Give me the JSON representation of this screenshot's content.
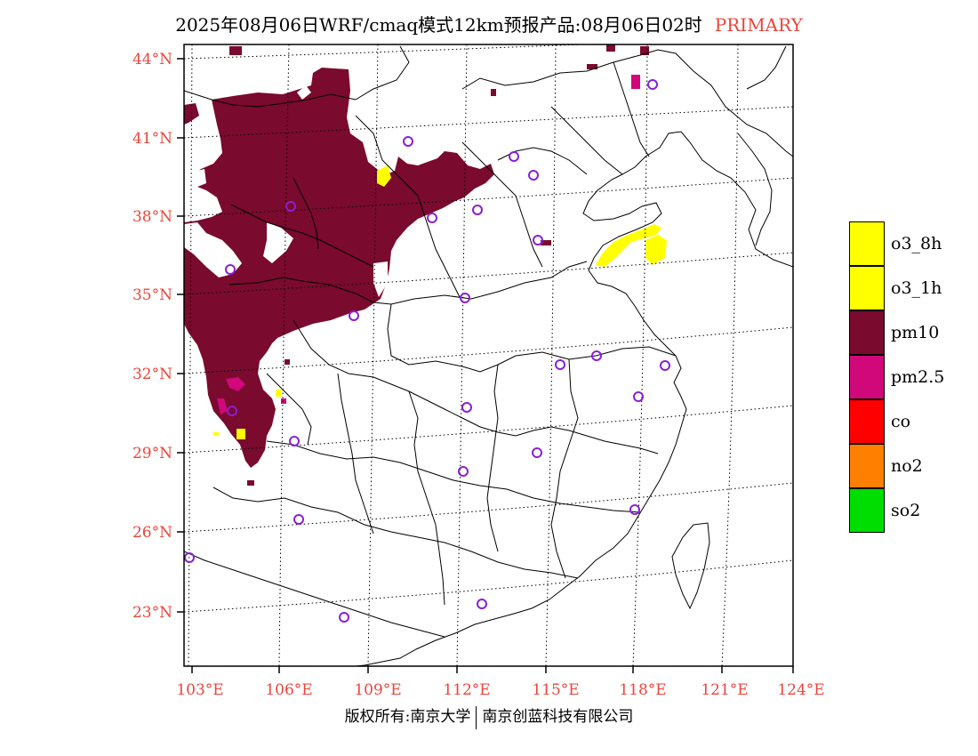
{
  "title": {
    "text": "2025年08月06日WRF/cmaq模式12km预报产品:08月06日02时",
    "product": "PRIMARY"
  },
  "axes": {
    "lat_labels": [
      "44°N",
      "41°N",
      "38°N",
      "35°N",
      "32°N",
      "29°N",
      "26°N",
      "23°N"
    ],
    "lon_labels": [
      "103°E",
      "106°E",
      "109°E",
      "112°E",
      "115°E",
      "118°E",
      "121°E",
      "124°E"
    ]
  },
  "legend": [
    {
      "label": "o3_8h",
      "color": "#ffff00"
    },
    {
      "label": "o3_1h",
      "color": "#ffff00"
    },
    {
      "label": "pm10",
      "color": "#7a0a2e"
    },
    {
      "label": "pm2.5",
      "color": "#d0087a"
    },
    {
      "label": "co",
      "color": "#ff0000"
    },
    {
      "label": "no2",
      "color": "#ff8000"
    },
    {
      "label": "so2",
      "color": "#00dd00"
    }
  ],
  "footer": {
    "left": "版权所有:南京大学",
    "right": "南京创蓝科技有限公司"
  },
  "colors": {
    "label_red": "#e8463b",
    "pm10": "#7a0a2e",
    "pm25": "#d0087a",
    "o3": "#ffff00",
    "station": "#8a1fd6"
  }
}
